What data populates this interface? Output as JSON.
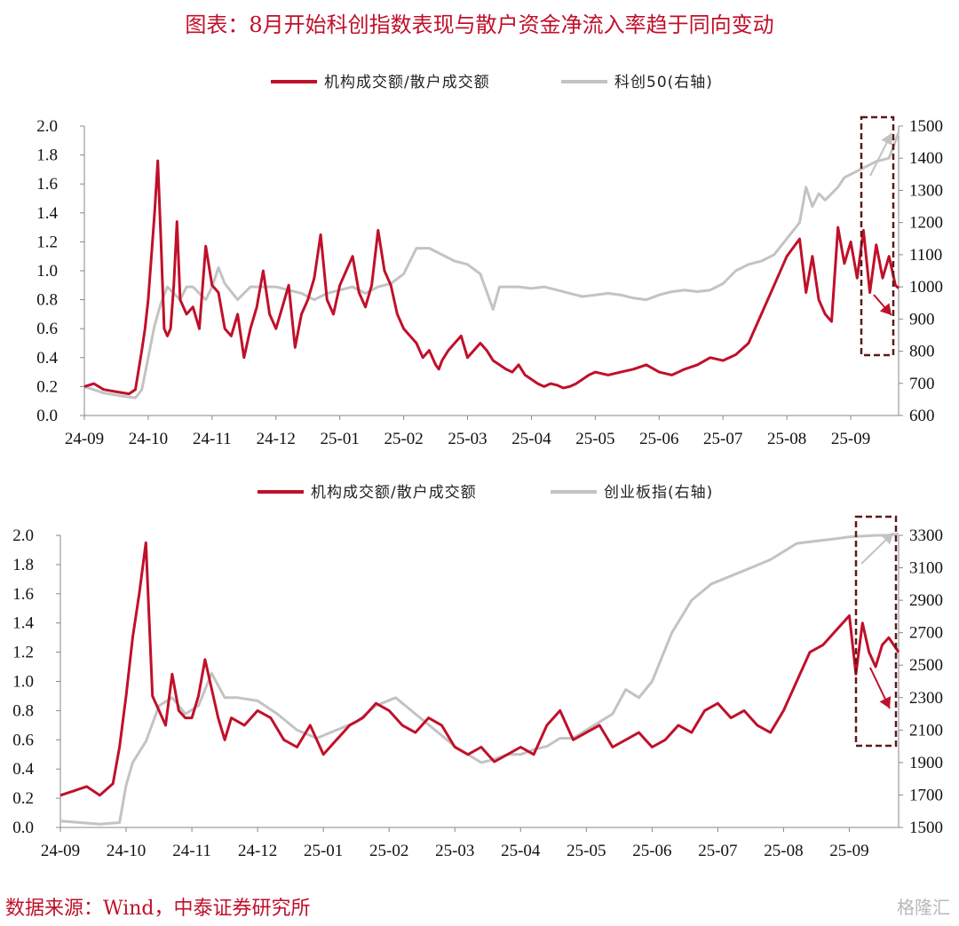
{
  "title": "图表：8月开始科创指数表现与散户资金净流入率趋于同向变动",
  "source": "数据来源：Wind，中泰证券研究所",
  "watermark": "格隆汇",
  "colors": {
    "institution": "#c0102a",
    "index": "#c3c3c3",
    "box": "#5a1a1a"
  },
  "chart_data": [
    {
      "type": "line",
      "legend": [
        "机构成交额/散户成交额",
        "科创50(右轴)"
      ],
      "x_ticks": [
        "24-09",
        "24-10",
        "24-11",
        "24-12",
        "25-01",
        "25-02",
        "25-03",
        "25-04",
        "25-05",
        "25-06",
        "25-07",
        "25-08",
        "25-09"
      ],
      "y_left": {
        "min": 0,
        "max": 2,
        "ticks": [
          "0.0",
          "0.2",
          "0.4",
          "0.6",
          "0.8",
          "1.0",
          "1.2",
          "1.4",
          "1.6",
          "1.8",
          "2.0"
        ]
      },
      "y_right": {
        "min": 600,
        "max": 1500,
        "ticks": [
          "600",
          "700",
          "800",
          "900",
          "1000",
          "1100",
          "1200",
          "1300",
          "1400",
          "1500"
        ]
      },
      "series": [
        {
          "name": "机构成交额/散户成交额",
          "axis": "left",
          "x": [
            0,
            0.15,
            0.3,
            0.55,
            0.7,
            0.8,
            0.9,
            0.95,
            1.0,
            1.05,
            1.1,
            1.15,
            1.2,
            1.25,
            1.3,
            1.35,
            1.4,
            1.45,
            1.5,
            1.6,
            1.7,
            1.8,
            1.9,
            2.0,
            2.1,
            2.2,
            2.3,
            2.4,
            2.5,
            2.6,
            2.7,
            2.8,
            2.9,
            3.0,
            3.1,
            3.2,
            3.3,
            3.4,
            3.5,
            3.6,
            3.7,
            3.8,
            3.9,
            4.0,
            4.1,
            4.2,
            4.3,
            4.4,
            4.5,
            4.6,
            4.7,
            4.8,
            4.9,
            5.0,
            5.1,
            5.2,
            5.3,
            5.4,
            5.5,
            5.55,
            5.6,
            5.7,
            5.8,
            5.9,
            6.0,
            6.1,
            6.2,
            6.3,
            6.4,
            6.5,
            6.6,
            6.7,
            6.8,
            6.9,
            7.0,
            7.1,
            7.2,
            7.3,
            7.4,
            7.5,
            7.6,
            7.7,
            7.8,
            7.9,
            8.0,
            8.2,
            8.4,
            8.6,
            8.8,
            9.0,
            9.2,
            9.4,
            9.6,
            9.8,
            10.0,
            10.2,
            10.4,
            10.6,
            10.8,
            11.0,
            11.2,
            11.3,
            11.4,
            11.5,
            11.6,
            11.7,
            11.8,
            11.9,
            12.0,
            12.1,
            12.2,
            12.3,
            12.4,
            12.5,
            12.6,
            12.7,
            12.75
          ],
          "y": [
            0.2,
            0.22,
            0.18,
            0.16,
            0.15,
            0.18,
            0.45,
            0.6,
            0.8,
            1.1,
            1.4,
            1.76,
            1.2,
            0.6,
            0.55,
            0.6,
            0.9,
            1.34,
            0.8,
            0.7,
            0.75,
            0.6,
            1.17,
            0.9,
            0.85,
            0.6,
            0.55,
            0.7,
            0.4,
            0.6,
            0.75,
            1.0,
            0.7,
            0.6,
            0.75,
            0.9,
            0.47,
            0.7,
            0.8,
            0.95,
            1.25,
            0.8,
            0.7,
            0.9,
            1.0,
            1.1,
            0.85,
            0.75,
            0.9,
            1.28,
            1.0,
            0.9,
            0.7,
            0.6,
            0.55,
            0.5,
            0.4,
            0.45,
            0.35,
            0.32,
            0.38,
            0.45,
            0.5,
            0.55,
            0.4,
            0.45,
            0.5,
            0.45,
            0.38,
            0.35,
            0.32,
            0.3,
            0.35,
            0.28,
            0.25,
            0.22,
            0.2,
            0.22,
            0.21,
            0.19,
            0.2,
            0.22,
            0.25,
            0.28,
            0.3,
            0.28,
            0.3,
            0.32,
            0.35,
            0.3,
            0.28,
            0.32,
            0.35,
            0.4,
            0.38,
            0.42,
            0.5,
            0.7,
            0.9,
            1.1,
            1.22,
            0.85,
            1.1,
            0.8,
            0.7,
            0.65,
            1.3,
            1.05,
            1.2,
            0.95,
            1.28,
            0.85,
            1.18,
            0.95,
            1.1,
            0.9,
            0.88
          ]
        },
        {
          "name": "科创50(右轴)",
          "axis": "right",
          "x": [
            0,
            0.3,
            0.6,
            0.8,
            0.9,
            1.0,
            1.1,
            1.2,
            1.3,
            1.4,
            1.5,
            1.6,
            1.7,
            1.8,
            1.9,
            2.0,
            2.1,
            2.2,
            2.4,
            2.6,
            2.8,
            3.0,
            3.2,
            3.4,
            3.6,
            3.8,
            4.0,
            4.2,
            4.4,
            4.6,
            4.8,
            5.0,
            5.2,
            5.4,
            5.6,
            5.8,
            6.0,
            6.2,
            6.4,
            6.5,
            6.6,
            6.8,
            7.0,
            7.2,
            7.4,
            7.6,
            7.8,
            8.0,
            8.2,
            8.4,
            8.6,
            8.8,
            9.0,
            9.2,
            9.4,
            9.6,
            9.8,
            10.0,
            10.2,
            10.4,
            10.6,
            10.8,
            11.0,
            11.2,
            11.3,
            11.4,
            11.5,
            11.6,
            11.7,
            11.8,
            11.9,
            12.0,
            12.2,
            12.4,
            12.6,
            12.75
          ],
          "y": [
            690,
            670,
            660,
            655,
            680,
            780,
            880,
            950,
            1000,
            980,
            960,
            1000,
            1000,
            980,
            960,
            1000,
            1060,
            1010,
            960,
            1000,
            1000,
            1000,
            990,
            980,
            960,
            980,
            990,
            1000,
            980,
            1000,
            1010,
            1040,
            1120,
            1120,
            1100,
            1080,
            1070,
            1040,
            930,
            1000,
            1000,
            1000,
            995,
            1000,
            990,
            980,
            970,
            975,
            980,
            975,
            965,
            960,
            975,
            985,
            990,
            985,
            990,
            1010,
            1050,
            1070,
            1080,
            1100,
            1150,
            1200,
            1310,
            1250,
            1290,
            1270,
            1290,
            1310,
            1340,
            1350,
            1370,
            1390,
            1400,
            1480
          ]
        }
      ]
    },
    {
      "type": "line",
      "legend": [
        "机构成交额/散户成交额",
        "创业板指(右轴)"
      ],
      "x_ticks": [
        "24-09",
        "24-10",
        "24-11",
        "24-12",
        "25-01",
        "25-02",
        "25-03",
        "25-04",
        "25-05",
        "25-06",
        "25-07",
        "25-08",
        "25-09"
      ],
      "y_left": {
        "min": 0,
        "max": 2,
        "ticks": [
          "0.0",
          "0.2",
          "0.4",
          "0.6",
          "0.8",
          "1.0",
          "1.2",
          "1.4",
          "1.6",
          "1.8",
          "2.0"
        ]
      },
      "y_right": {
        "min": 1500,
        "max": 3300,
        "ticks": [
          "1500",
          "1700",
          "1900",
          "2100",
          "2300",
          "2500",
          "2700",
          "2900",
          "3100",
          "3300"
        ]
      },
      "series": [
        {
          "name": "机构成交额/散户成交额",
          "axis": "left",
          "x": [
            0,
            0.2,
            0.4,
            0.6,
            0.8,
            0.9,
            1.0,
            1.1,
            1.2,
            1.3,
            1.4,
            1.5,
            1.6,
            1.7,
            1.8,
            1.9,
            2.0,
            2.1,
            2.2,
            2.3,
            2.4,
            2.5,
            2.6,
            2.8,
            3.0,
            3.2,
            3.4,
            3.6,
            3.8,
            4.0,
            4.2,
            4.4,
            4.6,
            4.8,
            5.0,
            5.2,
            5.4,
            5.6,
            5.8,
            6.0,
            6.2,
            6.4,
            6.6,
            6.8,
            7.0,
            7.2,
            7.4,
            7.6,
            7.8,
            8.0,
            8.2,
            8.4,
            8.6,
            8.8,
            9.0,
            9.2,
            9.4,
            9.6,
            9.8,
            10.0,
            10.2,
            10.4,
            10.6,
            10.8,
            11.0,
            11.2,
            11.4,
            11.6,
            11.8,
            12.0,
            12.1,
            12.2,
            12.3,
            12.4,
            12.5,
            12.6,
            12.75
          ],
          "y": [
            0.22,
            0.25,
            0.28,
            0.22,
            0.3,
            0.55,
            0.9,
            1.3,
            1.6,
            1.95,
            0.9,
            0.8,
            0.7,
            1.05,
            0.8,
            0.75,
            0.75,
            0.9,
            1.15,
            0.95,
            0.75,
            0.6,
            0.75,
            0.7,
            0.8,
            0.75,
            0.6,
            0.55,
            0.7,
            0.5,
            0.6,
            0.7,
            0.75,
            0.85,
            0.8,
            0.7,
            0.65,
            0.75,
            0.7,
            0.55,
            0.5,
            0.55,
            0.45,
            0.5,
            0.55,
            0.5,
            0.7,
            0.8,
            0.6,
            0.65,
            0.7,
            0.55,
            0.6,
            0.65,
            0.55,
            0.6,
            0.7,
            0.65,
            0.8,
            0.85,
            0.75,
            0.8,
            0.7,
            0.65,
            0.8,
            1.0,
            1.2,
            1.25,
            1.35,
            1.45,
            1.05,
            1.4,
            1.2,
            1.1,
            1.25,
            1.3,
            1.2
          ]
        },
        {
          "name": "创业板指(右轴)",
          "axis": "right",
          "x": [
            0,
            0.3,
            0.6,
            0.9,
            1.0,
            1.1,
            1.3,
            1.5,
            1.7,
            1.9,
            2.1,
            2.3,
            2.5,
            2.7,
            3.0,
            3.3,
            3.6,
            3.9,
            4.2,
            4.5,
            4.8,
            5.1,
            5.4,
            5.7,
            6.0,
            6.2,
            6.4,
            6.6,
            6.8,
            7.0,
            7.2,
            7.4,
            7.6,
            7.8,
            8.0,
            8.2,
            8.4,
            8.6,
            8.8,
            9.0,
            9.3,
            9.6,
            9.9,
            10.2,
            10.5,
            10.8,
            11.0,
            11.2,
            11.4,
            11.6,
            11.8,
            12.0,
            12.2,
            12.4,
            12.6,
            12.75
          ],
          "y": [
            1540,
            1530,
            1520,
            1530,
            1760,
            1900,
            2030,
            2250,
            2300,
            2200,
            2250,
            2450,
            2300,
            2300,
            2280,
            2200,
            2100,
            2050,
            2100,
            2150,
            2250,
            2300,
            2200,
            2100,
            2000,
            1950,
            1900,
            1920,
            1950,
            1950,
            1980,
            2000,
            2050,
            2050,
            2100,
            2150,
            2200,
            2350,
            2300,
            2400,
            2700,
            2900,
            3000,
            3050,
            3100,
            3150,
            3200,
            3250,
            3260,
            3270,
            3280,
            3290,
            3295,
            3300,
            3300,
            3310
          ]
        }
      ]
    }
  ]
}
